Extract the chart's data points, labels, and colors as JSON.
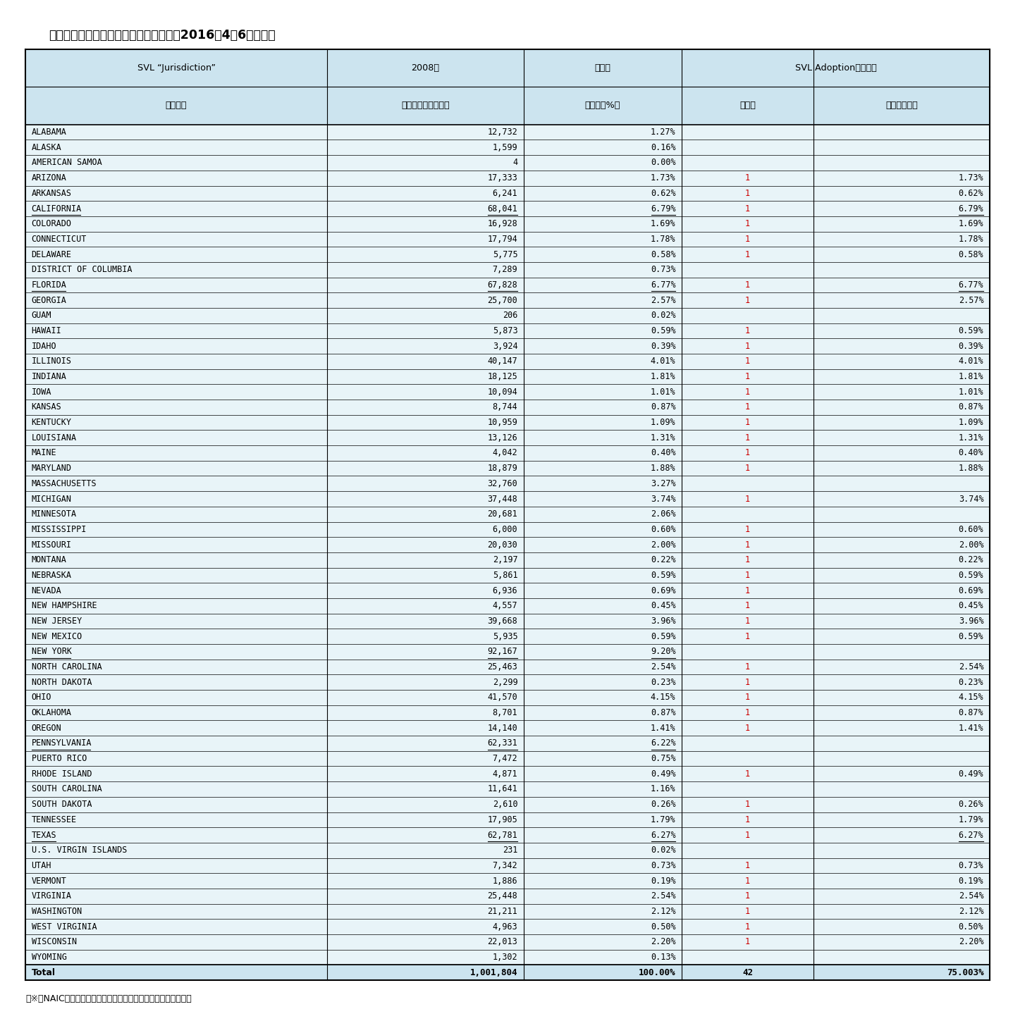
{
  "title": "（参考１）各州毎の改正法の採択状況（2016年4月6日時点）",
  "footnote": "（※）NAICの資料に、筆者が一部修正及び翻訳を付け加えて作成",
  "rows": [
    [
      "ALABAMA",
      "12,732",
      "1.27%",
      "",
      ""
    ],
    [
      "ALASKA",
      "1,599",
      "0.16%",
      "",
      ""
    ],
    [
      "AMERICAN SAMOA",
      "4",
      "0.00%",
      "",
      ""
    ],
    [
      "ARIZONA",
      "17,333",
      "1.73%",
      "1",
      "1.73%"
    ],
    [
      "ARKANSAS",
      "6,241",
      "0.62%",
      "1",
      "0.62%"
    ],
    [
      "CALIFORNIA",
      "68,041",
      "6.79%",
      "1",
      "6.79%"
    ],
    [
      "COLORADO",
      "16,928",
      "1.69%",
      "1",
      "1.69%"
    ],
    [
      "CONNECTICUT",
      "17,794",
      "1.78%",
      "1",
      "1.78%"
    ],
    [
      "DELAWARE",
      "5,775",
      "0.58%",
      "1",
      "0.58%"
    ],
    [
      "DISTRICT OF COLUMBIA",
      "7,289",
      "0.73%",
      "",
      ""
    ],
    [
      "FLORIDA",
      "67,828",
      "6.77%",
      "1",
      "6.77%"
    ],
    [
      "GEORGIA",
      "25,700",
      "2.57%",
      "1",
      "2.57%"
    ],
    [
      "GUAM",
      "206",
      "0.02%",
      "",
      ""
    ],
    [
      "HAWAII",
      "5,873",
      "0.59%",
      "1",
      "0.59%"
    ],
    [
      "IDAHO",
      "3,924",
      "0.39%",
      "1",
      "0.39%"
    ],
    [
      "ILLINOIS",
      "40,147",
      "4.01%",
      "1",
      "4.01%"
    ],
    [
      "INDIANA",
      "18,125",
      "1.81%",
      "1",
      "1.81%"
    ],
    [
      "IOWA",
      "10,094",
      "1.01%",
      "1",
      "1.01%"
    ],
    [
      "KANSAS",
      "8,744",
      "0.87%",
      "1",
      "0.87%"
    ],
    [
      "KENTUCKY",
      "10,959",
      "1.09%",
      "1",
      "1.09%"
    ],
    [
      "LOUISIANA",
      "13,126",
      "1.31%",
      "1",
      "1.31%"
    ],
    [
      "MAINE",
      "4,042",
      "0.40%",
      "1",
      "0.40%"
    ],
    [
      "MARYLAND",
      "18,879",
      "1.88%",
      "1",
      "1.88%"
    ],
    [
      "MASSACHUSETTS",
      "32,760",
      "3.27%",
      "",
      ""
    ],
    [
      "MICHIGAN",
      "37,448",
      "3.74%",
      "1",
      "3.74%"
    ],
    [
      "MINNESOTA",
      "20,681",
      "2.06%",
      "",
      ""
    ],
    [
      "MISSISSIPPI",
      "6,000",
      "0.60%",
      "1",
      "0.60%"
    ],
    [
      "MISSOURI",
      "20,030",
      "2.00%",
      "1",
      "2.00%"
    ],
    [
      "MONTANA",
      "2,197",
      "0.22%",
      "1",
      "0.22%"
    ],
    [
      "NEBRASKA",
      "5,861",
      "0.59%",
      "1",
      "0.59%"
    ],
    [
      "NEVADA",
      "6,936",
      "0.69%",
      "1",
      "0.69%"
    ],
    [
      "NEW HAMPSHIRE",
      "4,557",
      "0.45%",
      "1",
      "0.45%"
    ],
    [
      "NEW JERSEY",
      "39,668",
      "3.96%",
      "1",
      "3.96%"
    ],
    [
      "NEW MEXICO",
      "5,935",
      "0.59%",
      "1",
      "0.59%"
    ],
    [
      "NEW YORK",
      "92,167",
      "9.20%",
      "",
      ""
    ],
    [
      "NORTH CAROLINA",
      "25,463",
      "2.54%",
      "1",
      "2.54%"
    ],
    [
      "NORTH DAKOTA",
      "2,299",
      "0.23%",
      "1",
      "0.23%"
    ],
    [
      "OHIO",
      "41,570",
      "4.15%",
      "1",
      "4.15%"
    ],
    [
      "OKLAHOMA",
      "8,701",
      "0.87%",
      "1",
      "0.87%"
    ],
    [
      "OREGON",
      "14,140",
      "1.41%",
      "1",
      "1.41%"
    ],
    [
      "PENNSYLVANIA",
      "62,331",
      "6.22%",
      "",
      ""
    ],
    [
      "PUERTO RICO",
      "7,472",
      "0.75%",
      "",
      ""
    ],
    [
      "RHODE ISLAND",
      "4,871",
      "0.49%",
      "1",
      "0.49%"
    ],
    [
      "SOUTH CAROLINA",
      "11,641",
      "1.16%",
      "",
      ""
    ],
    [
      "SOUTH DAKOTA",
      "2,610",
      "0.26%",
      "1",
      "0.26%"
    ],
    [
      "TENNESSEE",
      "17,905",
      "1.79%",
      "1",
      "1.79%"
    ],
    [
      "TEXAS",
      "62,781",
      "6.27%",
      "1",
      "6.27%"
    ],
    [
      "U.S. VIRGIN ISLANDS",
      "231",
      "0.02%",
      "",
      ""
    ],
    [
      "UTAH",
      "7,342",
      "0.73%",
      "1",
      "0.73%"
    ],
    [
      "VERMONT",
      "1,886",
      "0.19%",
      "1",
      "0.19%"
    ],
    [
      "VIRGINIA",
      "25,448",
      "2.54%",
      "1",
      "2.54%"
    ],
    [
      "WASHINGTON",
      "21,211",
      "2.12%",
      "1",
      "2.12%"
    ],
    [
      "WEST VIRGINIA",
      "4,963",
      "0.50%",
      "1",
      "0.50%"
    ],
    [
      "WISCONSIN",
      "22,013",
      "2.20%",
      "1",
      "2.20%"
    ],
    [
      "WYOMING",
      "1,302",
      "0.13%",
      "",
      ""
    ]
  ],
  "total_row": [
    "Total",
    "1,001,804",
    "100.00%",
    "42",
    "75.003%"
  ],
  "underlined_rows": [
    "CALIFORNIA",
    "FLORIDA",
    "NEW YORK",
    "PENNSYLVANIA",
    "TEXAS"
  ],
  "bg_color_header": "#cce4ef",
  "bg_color_data": "#e8f4f8",
  "bg_color_total": "#cce4ef",
  "red_color": "#cc0000"
}
